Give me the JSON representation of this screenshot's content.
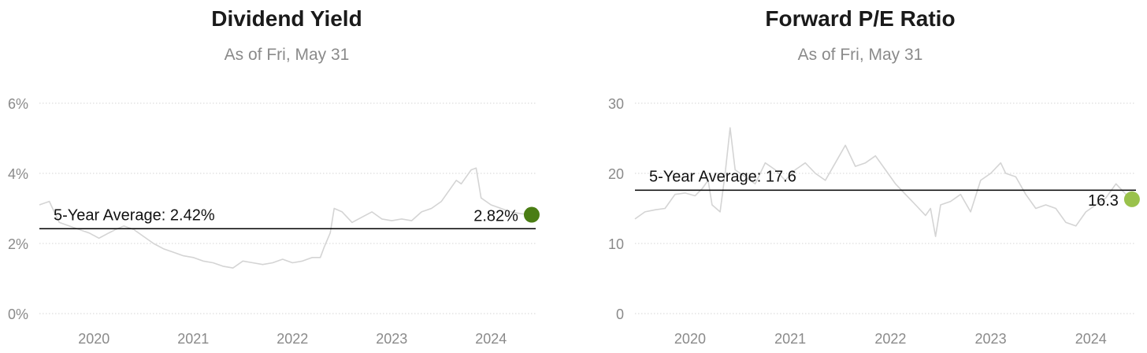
{
  "charts": [
    {
      "title": "Dividend Yield",
      "subtitle": "As of Fri, May 31",
      "latest_color": "#4a7d14",
      "line_color": "#d4d4d4",
      "average_line_color": "#000000"
    },
    {
      "title": "Forward P/E Ratio",
      "subtitle": "As of Fri, May 31",
      "latest_color": "#9ac24c",
      "line_color": "#d4d4d4",
      "average_line_color": "#000000"
    }
  ],
  "chart_data": [
    {
      "type": "line",
      "title": "Dividend Yield",
      "subtitle": "As of Fri, May 31",
      "ylim": [
        0,
        6
      ],
      "y_ticks": [
        0,
        2,
        4,
        6
      ],
      "y_tick_labels": [
        "0%",
        "2%",
        "4%",
        "6%"
      ],
      "x_range": [
        2019.45,
        2024.45
      ],
      "x_ticks": [
        2020,
        2021,
        2022,
        2023,
        2024
      ],
      "x_tick_labels": [
        "2020",
        "2021",
        "2022",
        "2023",
        "2024"
      ],
      "grid": true,
      "average": {
        "label": "5-Year Average: 2.42%",
        "value": 2.42
      },
      "latest": {
        "label": "2.82%",
        "x": 2024.41,
        "value": 2.82
      },
      "series": [
        {
          "x": [
            2019.45,
            2019.55,
            2019.65,
            2019.75,
            2019.85,
            2019.95,
            2020.05,
            2020.15,
            2020.22,
            2020.3,
            2020.4,
            2020.5,
            2020.6,
            2020.7,
            2020.8,
            2020.9,
            2021.0,
            2021.1,
            2021.2,
            2021.3,
            2021.4,
            2021.5,
            2021.6,
            2021.7,
            2021.8,
            2021.9,
            2022.0,
            2022.1,
            2022.2,
            2022.28,
            2022.32,
            2022.38,
            2022.42,
            2022.5,
            2022.6,
            2022.7,
            2022.8,
            2022.9,
            2023.0,
            2023.1,
            2023.2,
            2023.3,
            2023.4,
            2023.5,
            2023.6,
            2023.65,
            2023.7,
            2023.75,
            2023.8,
            2023.85,
            2023.9,
            2024.0,
            2024.1,
            2024.2,
            2024.3,
            2024.41
          ],
          "values": [
            3.1,
            3.2,
            2.6,
            2.5,
            2.4,
            2.3,
            2.15,
            2.3,
            2.4,
            2.5,
            2.4,
            2.2,
            2.0,
            1.85,
            1.75,
            1.65,
            1.6,
            1.5,
            1.45,
            1.35,
            1.3,
            1.5,
            1.45,
            1.4,
            1.45,
            1.55,
            1.45,
            1.5,
            1.6,
            1.6,
            1.9,
            2.3,
            3.0,
            2.9,
            2.6,
            2.75,
            2.9,
            2.7,
            2.65,
            2.7,
            2.65,
            2.9,
            3.0,
            3.2,
            3.6,
            3.8,
            3.7,
            3.9,
            4.1,
            4.15,
            3.3,
            3.1,
            3.0,
            2.9,
            2.85,
            2.82
          ]
        }
      ]
    },
    {
      "type": "line",
      "title": "Forward P/E Ratio",
      "subtitle": "As of Fri, May 31",
      "ylim": [
        0,
        30
      ],
      "y_ticks": [
        0,
        10,
        20,
        30
      ],
      "y_tick_labels": [
        "0",
        "10",
        "20",
        "30"
      ],
      "x_range": [
        2019.45,
        2024.45
      ],
      "x_ticks": [
        2020,
        2021,
        2022,
        2023,
        2024
      ],
      "x_tick_labels": [
        "2020",
        "2021",
        "2022",
        "2023",
        "2024"
      ],
      "grid": true,
      "average": {
        "label": "5-Year Average: 17.6",
        "value": 17.6
      },
      "latest": {
        "label": "16.3",
        "x": 2024.41,
        "value": 16.3
      },
      "series": [
        {
          "x": [
            2019.45,
            2019.55,
            2019.65,
            2019.75,
            2019.85,
            2019.95,
            2020.05,
            2020.12,
            2020.18,
            2020.22,
            2020.3,
            2020.35,
            2020.4,
            2020.45,
            2020.55,
            2020.65,
            2020.75,
            2020.85,
            2020.95,
            2021.05,
            2021.15,
            2021.25,
            2021.35,
            2021.45,
            2021.55,
            2021.65,
            2021.75,
            2021.85,
            2021.95,
            2022.05,
            2022.15,
            2022.25,
            2022.35,
            2022.4,
            2022.45,
            2022.5,
            2022.6,
            2022.7,
            2022.8,
            2022.9,
            2023.0,
            2023.1,
            2023.15,
            2023.25,
            2023.35,
            2023.45,
            2023.55,
            2023.65,
            2023.75,
            2023.85,
            2023.95,
            2024.05,
            2024.15,
            2024.25,
            2024.35,
            2024.41
          ],
          "values": [
            13.5,
            14.5,
            14.8,
            15.0,
            17.0,
            17.2,
            16.8,
            17.8,
            19.0,
            15.5,
            14.5,
            20.0,
            26.5,
            20.5,
            19.5,
            18.5,
            21.5,
            20.5,
            19.0,
            20.5,
            21.5,
            20.0,
            19.0,
            21.5,
            24.0,
            21.0,
            21.5,
            22.5,
            20.5,
            18.5,
            17.0,
            15.5,
            14.0,
            15.0,
            11.0,
            15.5,
            16.0,
            17.0,
            14.5,
            19.0,
            20.0,
            21.5,
            20.0,
            19.5,
            17.0,
            15.0,
            15.5,
            15.0,
            13.0,
            12.5,
            14.5,
            15.5,
            16.5,
            18.5,
            17.0,
            16.3
          ]
        }
      ]
    }
  ]
}
